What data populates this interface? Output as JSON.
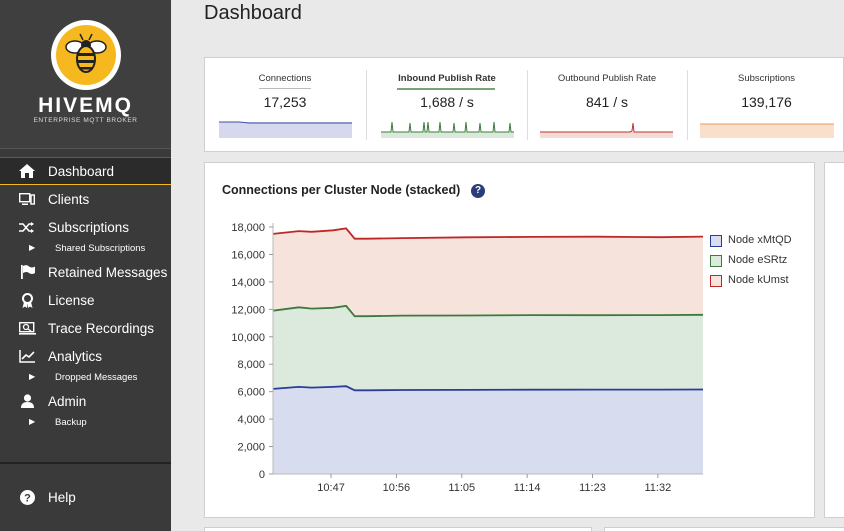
{
  "brand": {
    "name": "HIVEMQ",
    "tagline": "ENTERPRISE MQTT BROKER"
  },
  "nav": {
    "items": [
      {
        "label": "Dashboard",
        "icon": "home-icon",
        "active": true
      },
      {
        "label": "Clients",
        "icon": "clients-icon"
      },
      {
        "label": "Subscriptions",
        "icon": "shuffle-icon"
      },
      {
        "label": "Retained Messages",
        "icon": "flag-icon"
      },
      {
        "label": "License",
        "icon": "award-icon"
      },
      {
        "label": "Trace Recordings",
        "icon": "trace-icon"
      },
      {
        "label": "Analytics",
        "icon": "chart-line-icon"
      },
      {
        "label": "Admin",
        "icon": "user-icon"
      }
    ],
    "sub": {
      "subscriptions": "Shared Subscriptions",
      "analytics": "Dropped Messages",
      "admin": "Backup"
    },
    "help": "Help"
  },
  "page": {
    "title": "Dashboard"
  },
  "stats": [
    {
      "title": "Connections",
      "value": "17,253",
      "color": "#3f4fa0",
      "fill": "#d6d9ee"
    },
    {
      "title": "Inbound Publish Rate",
      "value": "1,688 / s",
      "color": "#3d7a3d",
      "fill": "#dbe9db"
    },
    {
      "title": "Outbound Publish Rate",
      "value": "841 / s",
      "color": "#c03030",
      "fill": "#f4dcd6"
    },
    {
      "title": "Subscriptions",
      "value": "139,176",
      "color": "#e89a60",
      "fill": "#f9e0cd"
    }
  ],
  "chart_data": {
    "type": "area",
    "title": "Connections per Cluster Node (stacked)",
    "stacked": true,
    "x_tick_labels": [
      "10:47",
      "10:56",
      "11:05",
      "11:14",
      "11:23",
      "11:32"
    ],
    "y_ticks": [
      "0",
      "2,000",
      "4,000",
      "6,000",
      "8,000",
      "10,000",
      "12,000",
      "14,000",
      "16,000",
      "18,000"
    ],
    "ylim": [
      0,
      18000
    ],
    "x": [
      0,
      0.06,
      0.09,
      0.14,
      0.17,
      0.19,
      0.22,
      0.3,
      0.45,
      0.6,
      0.75,
      0.9,
      1.0
    ],
    "series": [
      {
        "name": "Node xMtQD",
        "color": "#2a3d9a",
        "fill": "#d8dcef",
        "values": [
          6200,
          6350,
          6300,
          6350,
          6400,
          6100,
          6100,
          6120,
          6130,
          6140,
          6150,
          6150,
          6160
        ]
      },
      {
        "name": "Node eSRtz",
        "color": "#3e7a3e",
        "fill": "#dce9dd",
        "values": [
          5700,
          5800,
          5750,
          5760,
          5850,
          5400,
          5400,
          5420,
          5420,
          5440,
          5420,
          5430,
          5440
        ]
      },
      {
        "name": "Node kUmst",
        "color": "#c02828",
        "fill": "#f6e3dc",
        "values": [
          5600,
          5550,
          5600,
          5650,
          5650,
          5650,
          5650,
          5650,
          5700,
          5700,
          5720,
          5680,
          5700
        ]
      }
    ],
    "legend": "right"
  }
}
